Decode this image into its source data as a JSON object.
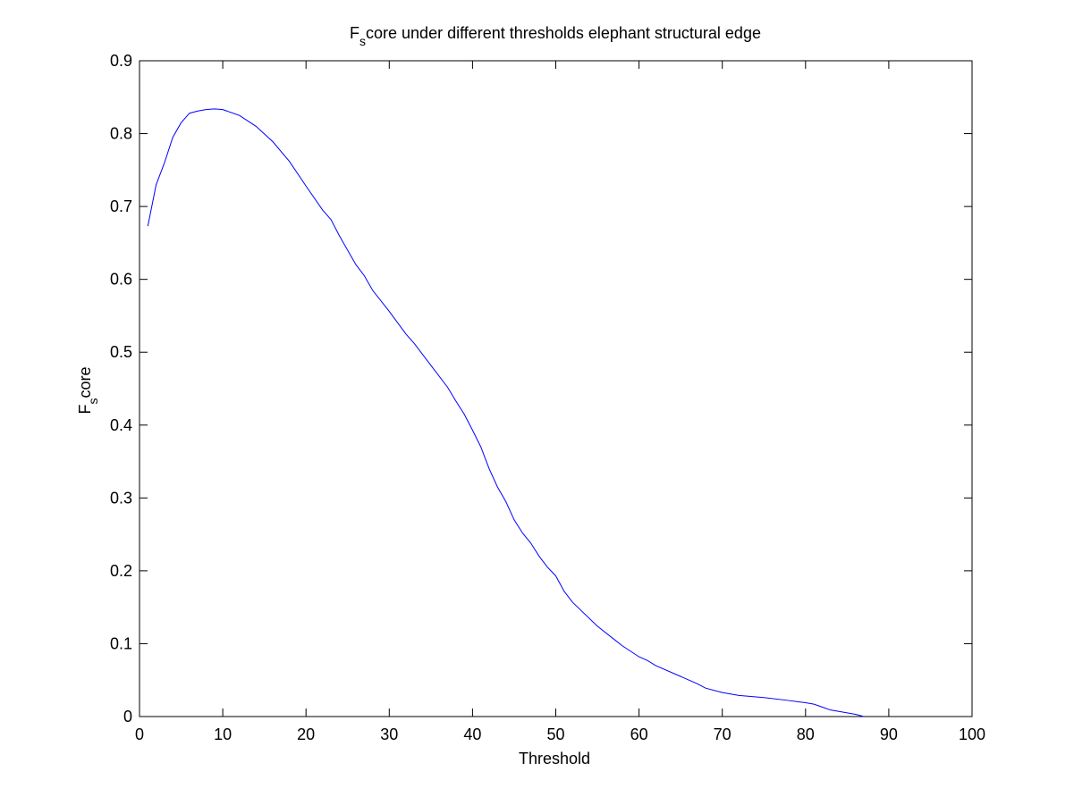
{
  "chart_data": {
    "type": "line",
    "title": {
      "main_before": "F",
      "subscript": "s",
      "main_after": "core under different thresholds elephant structural edge"
    },
    "xlabel": "Threshold",
    "ylabel": {
      "before": "F",
      "subscript": "s",
      "after": "core"
    },
    "xlim": [
      0,
      100
    ],
    "ylim": [
      0,
      0.9
    ],
    "xticks": [
      0,
      10,
      20,
      30,
      40,
      50,
      60,
      70,
      80,
      90,
      100
    ],
    "xtick_labels": [
      "0",
      "10",
      "20",
      "30",
      "40",
      "50",
      "60",
      "70",
      "80",
      "90",
      "100"
    ],
    "yticks": [
      0,
      0.1,
      0.2,
      0.3,
      0.4,
      0.5,
      0.6,
      0.7,
      0.8,
      0.9
    ],
    "ytick_labels": [
      "0",
      "0.1",
      "0.2",
      "0.3",
      "0.4",
      "0.5",
      "0.6",
      "0.7",
      "0.8",
      "0.9"
    ],
    "grid": false,
    "series": [
      {
        "name": "F-score",
        "color": "#0000ff",
        "x": [
          1,
          2,
          3,
          4,
          5,
          6,
          7,
          8,
          9,
          10,
          12,
          14,
          16,
          18,
          20,
          22,
          23,
          24,
          26,
          27,
          28,
          30,
          32,
          33,
          35,
          37,
          38,
          39,
          40,
          41,
          42,
          43,
          44,
          45,
          46,
          47,
          48,
          49,
          50,
          51,
          52,
          53,
          55,
          57,
          58,
          60,
          61,
          62,
          65,
          67,
          68,
          70,
          72,
          75,
          78,
          80,
          81,
          82,
          83,
          84,
          85,
          86,
          87
        ],
        "y": [
          0.673,
          0.73,
          0.76,
          0.795,
          0.815,
          0.828,
          0.831,
          0.833,
          0.834,
          0.833,
          0.825,
          0.81,
          0.789,
          0.762,
          0.728,
          0.695,
          0.682,
          0.66,
          0.62,
          0.605,
          0.585,
          0.556,
          0.525,
          0.512,
          0.482,
          0.452,
          0.433,
          0.415,
          0.393,
          0.37,
          0.34,
          0.315,
          0.295,
          0.27,
          0.252,
          0.238,
          0.22,
          0.205,
          0.193,
          0.172,
          0.157,
          0.146,
          0.124,
          0.106,
          0.097,
          0.082,
          0.077,
          0.07,
          0.055,
          0.045,
          0.039,
          0.033,
          0.029,
          0.026,
          0.022,
          0.019,
          0.017,
          0.013,
          0.009,
          0.007,
          0.005,
          0.003,
          0.0
        ]
      }
    ]
  }
}
